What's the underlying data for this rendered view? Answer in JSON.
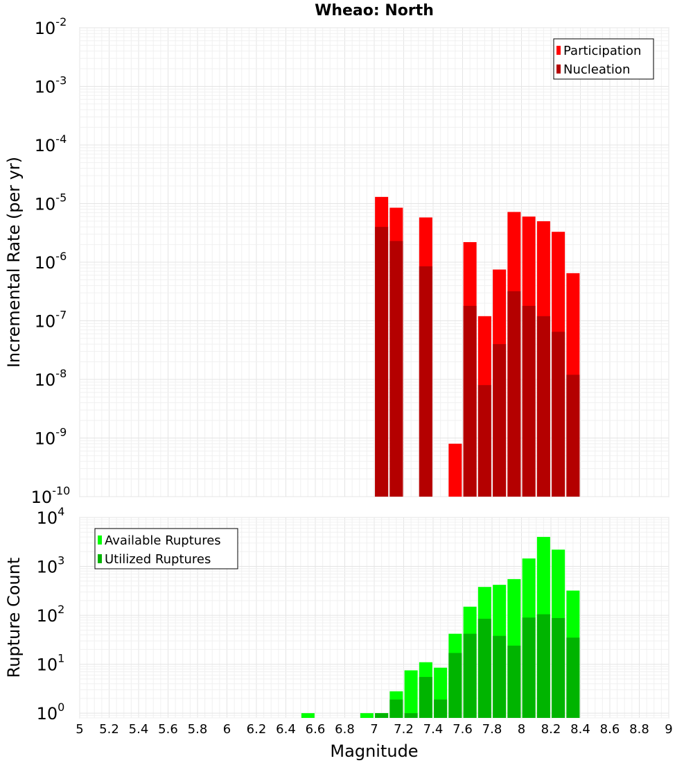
{
  "chart_data": [
    {
      "type": "bar",
      "title": "Wheao: North",
      "xlabel": "",
      "ylabel": "Incremental Rate (per yr)",
      "yscale": "log",
      "ylim": [
        1e-10,
        0.01
      ],
      "xlim": [
        5,
        9
      ],
      "grid": true,
      "legend_position": "top-right",
      "ytick_labels": [
        {
          "base": "10",
          "exp": "-10"
        },
        {
          "base": "10",
          "exp": "-9"
        },
        {
          "base": "10",
          "exp": "-8"
        },
        {
          "base": "10",
          "exp": "-7"
        },
        {
          "base": "10",
          "exp": "-6"
        },
        {
          "base": "10",
          "exp": "-5"
        },
        {
          "base": "10",
          "exp": "-4"
        },
        {
          "base": "10",
          "exp": "-3"
        },
        {
          "base": "10",
          "exp": "-2"
        }
      ],
      "series": [
        {
          "name": "Participation",
          "color": "#ff0000",
          "x": [
            7.0,
            7.1,
            7.3,
            7.5,
            7.6,
            7.7,
            7.8,
            7.9,
            8.0,
            8.1,
            8.2,
            8.3
          ],
          "values": [
            1.3e-05,
            8.5e-06,
            5.8e-06,
            8e-10,
            2.2e-06,
            1.2e-07,
            7.5e-07,
            7.2e-06,
            6e-06,
            5e-06,
            3.3e-06,
            6.5e-07
          ]
        },
        {
          "name": "Nucleation",
          "color": "#b40000",
          "x": [
            7.0,
            7.1,
            7.3,
            7.6,
            7.7,
            7.8,
            7.9,
            8.0,
            8.1,
            8.2,
            8.3
          ],
          "values": [
            4e-06,
            2.3e-06,
            8.5e-07,
            1.8e-07,
            8e-09,
            4e-08,
            3.2e-07,
            1.8e-07,
            1.2e-07,
            6.5e-08,
            1.2e-08
          ]
        }
      ]
    },
    {
      "type": "bar",
      "title": "",
      "xlabel": "Magnitude",
      "ylabel": "Rupture Count",
      "yscale": "log",
      "ylim": [
        0.8,
        10000
      ],
      "xlim": [
        5,
        9
      ],
      "grid": true,
      "legend_position": "top-left",
      "xtick_labels": [
        "5",
        "5.2",
        "5.4",
        "5.6",
        "5.8",
        "6",
        "6.2",
        "6.4",
        "6.6",
        "6.8",
        "7",
        "7.2",
        "7.4",
        "7.6",
        "7.8",
        "8",
        "8.2",
        "8.4",
        "8.6",
        "8.8",
        "9"
      ],
      "ytick_labels": [
        {
          "base": "10",
          "exp": "0"
        },
        {
          "base": "10",
          "exp": "1"
        },
        {
          "base": "10",
          "exp": "2"
        },
        {
          "base": "10",
          "exp": "3"
        },
        {
          "base": "10",
          "exp": "4"
        }
      ],
      "series": [
        {
          "name": "Available Ruptures",
          "color": "#00ff00",
          "x": [
            6.5,
            6.9,
            7.0,
            7.1,
            7.2,
            7.3,
            7.4,
            7.5,
            7.6,
            7.7,
            7.8,
            7.9,
            8.0,
            8.1,
            8.2,
            8.3
          ],
          "values": [
            1,
            1,
            1,
            2.8,
            7.5,
            11,
            8.5,
            42,
            150,
            380,
            420,
            550,
            1450,
            4000,
            2200,
            320
          ]
        },
        {
          "name": "Utilized Ruptures",
          "color": "#00b400",
          "x": [
            7.0,
            7.1,
            7.2,
            7.3,
            7.4,
            7.5,
            7.6,
            7.7,
            7.8,
            7.9,
            8.0,
            8.1,
            8.2,
            8.3
          ],
          "values": [
            1,
            1.9,
            1,
            5.5,
            1.9,
            17,
            42,
            85,
            38,
            24,
            90,
            105,
            88,
            35
          ]
        }
      ]
    }
  ]
}
